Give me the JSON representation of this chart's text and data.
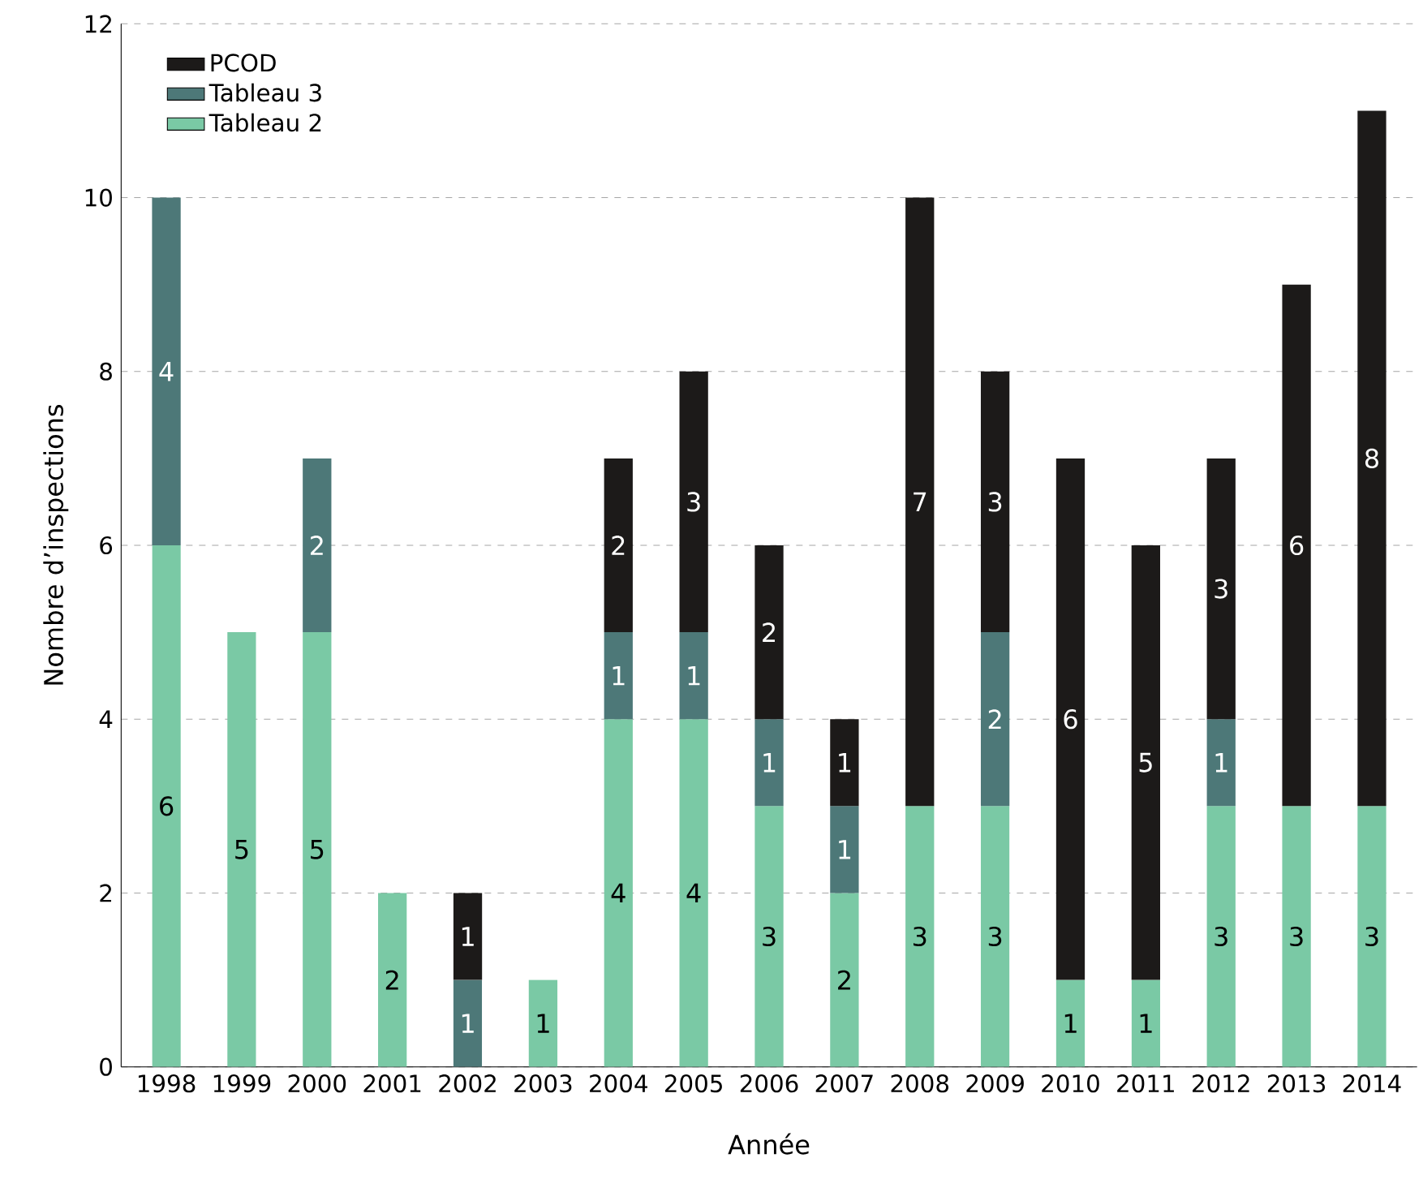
{
  "chart_data": {
    "type": "bar",
    "stacked": true,
    "xlabel": "Année",
    "ylabel": "Nombre d’inspections",
    "categories": [
      "1998",
      "1999",
      "2000",
      "2001",
      "2002",
      "2003",
      "2004",
      "2005",
      "2006",
      "2007",
      "2008",
      "2009",
      "2010",
      "2011",
      "2012",
      "2013",
      "2014"
    ],
    "series": [
      {
        "name": "Tableau 2",
        "color": "#7ac9a5",
        "values": [
          6,
          5,
          5,
          2,
          null,
          1,
          4,
          4,
          3,
          2,
          3,
          3,
          1,
          1,
          3,
          3,
          3
        ]
      },
      {
        "name": "Tableau 3",
        "color": "#4d7878",
        "values": [
          4,
          null,
          2,
          null,
          1,
          null,
          1,
          1,
          1,
          1,
          null,
          2,
          null,
          null,
          1,
          null,
          null
        ]
      },
      {
        "name": "PCOD",
        "color": "#1c1a19",
        "values": [
          null,
          null,
          null,
          null,
          1,
          null,
          2,
          3,
          2,
          1,
          7,
          3,
          6,
          5,
          3,
          6,
          8
        ]
      }
    ],
    "ylim": [
      0,
      12
    ],
    "yticks": [
      0,
      2,
      4,
      6,
      8,
      10,
      12
    ],
    "grid": "y",
    "legend": "top left",
    "data_labels": true
  }
}
